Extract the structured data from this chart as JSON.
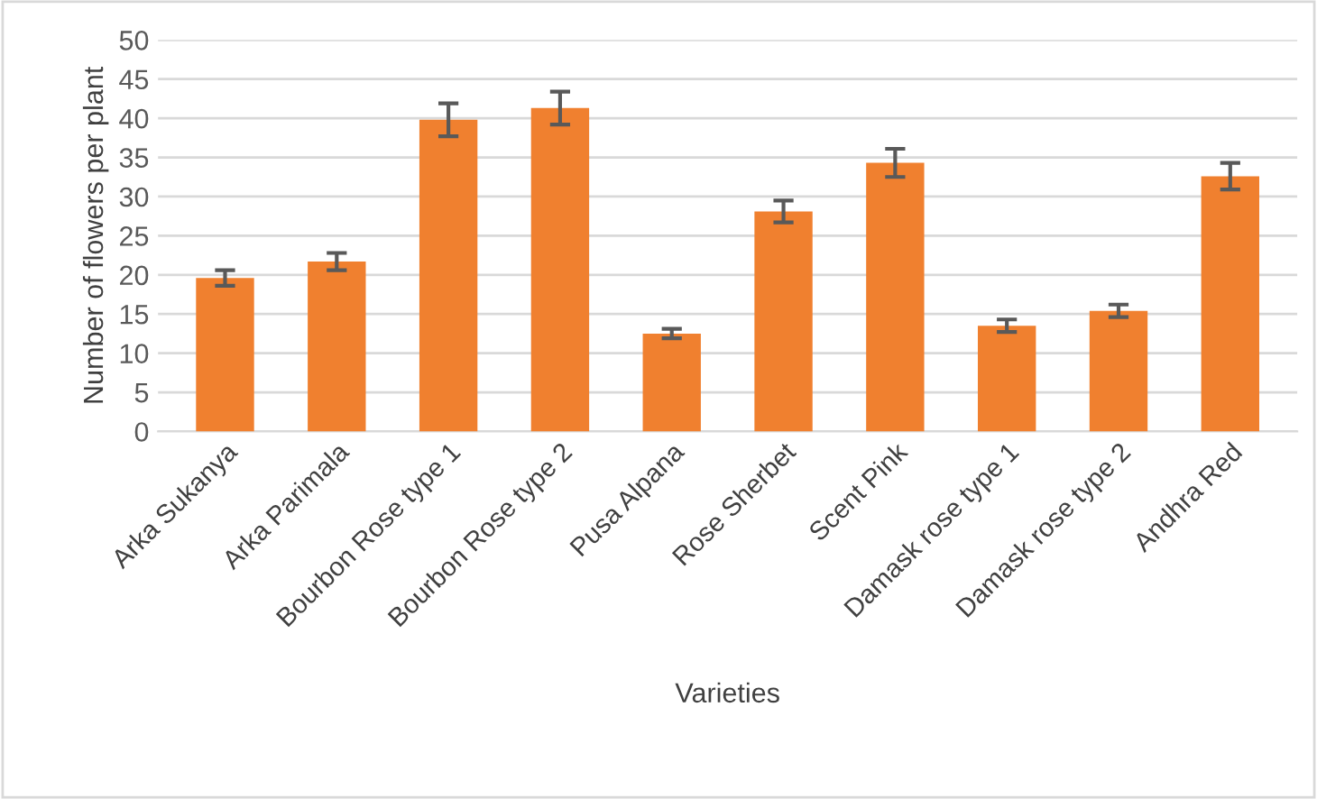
{
  "chart_data": {
    "type": "bar",
    "xlabel": "Varieties",
    "ylabel": "Number of flowers per plant",
    "categories": [
      "Arka Sukanya",
      "Arka Parimala",
      "Bourbon Rose type 1",
      "Bourbon Rose type 2",
      "Pusa Alpana",
      "Rose Sherbet",
      "Scent Pink",
      "Damask rose type 1",
      "Damask rose type 2",
      "Andhra Red"
    ],
    "values": [
      19.6,
      21.7,
      39.8,
      41.3,
      12.5,
      28.1,
      34.3,
      13.5,
      15.4,
      32.6
    ],
    "errors": [
      1.0,
      1.1,
      2.1,
      2.1,
      0.6,
      1.4,
      1.8,
      0.8,
      0.8,
      1.7
    ],
    "color": "#f0802f",
    "ylim": [
      0,
      50
    ],
    "yticks": [
      0,
      5,
      10,
      15,
      20,
      25,
      30,
      35,
      40,
      45,
      50
    ],
    "grid": "y"
  }
}
